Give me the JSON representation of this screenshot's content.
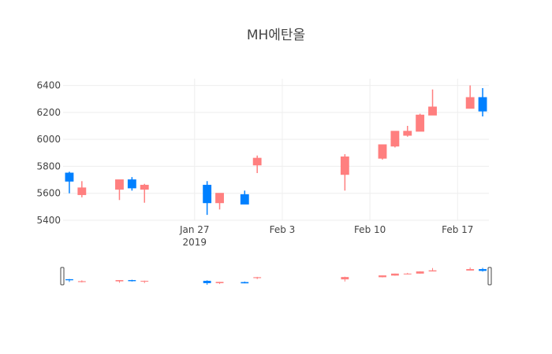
{
  "chart_data": {
    "type": "candlestick",
    "title": "MH에탄올",
    "xlabel": "",
    "ylabel": "",
    "ylim": [
      5400,
      6450
    ],
    "y_ticks": [
      5400,
      5600,
      5800,
      6000,
      6200,
      6400
    ],
    "x_range": [
      "2019-01-17",
      "2019-02-19"
    ],
    "x_ticks": [
      {
        "date": "2019-01-27",
        "label": "Jan 27",
        "sublabel": "2019"
      },
      {
        "date": "2019-02-03",
        "label": "Feb 3",
        "sublabel": ""
      },
      {
        "date": "2019-02-10",
        "label": "Feb 10",
        "sublabel": ""
      },
      {
        "date": "2019-02-17",
        "label": "Feb 17",
        "sublabel": ""
      }
    ],
    "grid": true,
    "legend": "none",
    "rangeslider": true,
    "colors": {
      "increasing": "#ff7f7f",
      "decreasing": "#0080ff",
      "grid": "#eeeeee"
    },
    "series": [
      {
        "candles": [
          {
            "date": "2019-01-17",
            "open": 5750,
            "high": 5760,
            "low": 5600,
            "close": 5690
          },
          {
            "date": "2019-01-18",
            "open": 5590,
            "high": 5690,
            "low": 5570,
            "close": 5640
          },
          {
            "date": "2019-01-21",
            "open": 5630,
            "high": 5700,
            "low": 5550,
            "close": 5700
          },
          {
            "date": "2019-01-22",
            "open": 5700,
            "high": 5720,
            "low": 5620,
            "close": 5640
          },
          {
            "date": "2019-01-23",
            "open": 5630,
            "high": 5670,
            "low": 5530,
            "close": 5660
          },
          {
            "date": "2019-01-28",
            "open": 5660,
            "high": 5690,
            "low": 5440,
            "close": 5530
          },
          {
            "date": "2019-01-29",
            "open": 5530,
            "high": 5600,
            "low": 5480,
            "close": 5600
          },
          {
            "date": "2019-01-31",
            "open": 5590,
            "high": 5620,
            "low": 5520,
            "close": 5520
          },
          {
            "date": "2019-02-01",
            "open": 5810,
            "high": 5880,
            "low": 5750,
            "close": 5860
          },
          {
            "date": "2019-02-08",
            "open": 5740,
            "high": 5890,
            "low": 5620,
            "close": 5870
          },
          {
            "date": "2019-02-11",
            "open": 5860,
            "high": 5960,
            "low": 5850,
            "close": 5960
          },
          {
            "date": "2019-02-12",
            "open": 5950,
            "high": 6060,
            "low": 5940,
            "close": 6060
          },
          {
            "date": "2019-02-13",
            "open": 6030,
            "high": 6100,
            "low": 6020,
            "close": 6060
          },
          {
            "date": "2019-02-14",
            "open": 6060,
            "high": 6190,
            "low": 6060,
            "close": 6180
          },
          {
            "date": "2019-02-15",
            "open": 6180,
            "high": 6370,
            "low": 6180,
            "close": 6240
          },
          {
            "date": "2019-02-18",
            "open": 6230,
            "high": 6400,
            "low": 6230,
            "close": 6310
          },
          {
            "date": "2019-02-19",
            "open": 6310,
            "high": 6380,
            "low": 6170,
            "close": 6210
          }
        ]
      }
    ]
  }
}
